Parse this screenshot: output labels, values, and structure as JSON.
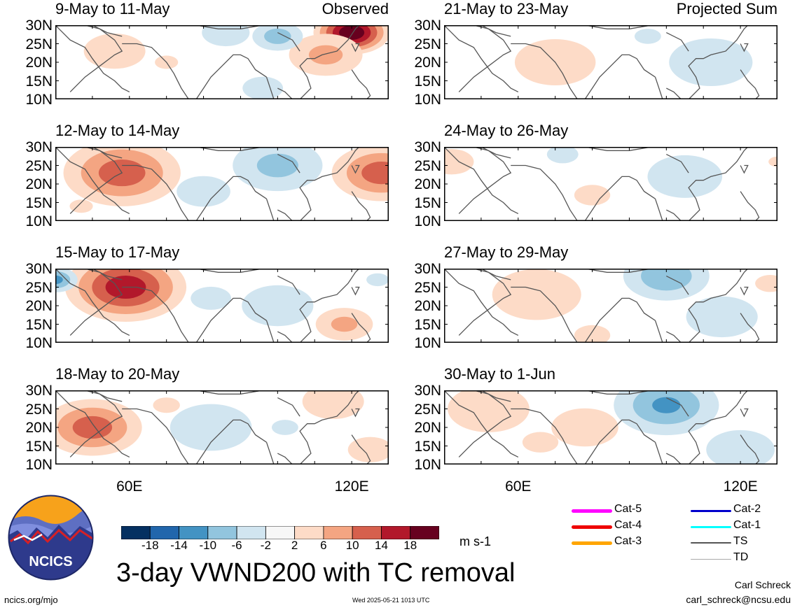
{
  "title": "3-day VWND200 with TC removal",
  "units": "m s-1",
  "footer": {
    "url": "ncics.org/mjo",
    "timestamp": "Wed 2025-05-21 1013 UTC",
    "author": "Carl Schreck",
    "email": "carl_schreck@ncsu.edu"
  },
  "logo": {
    "text": "NCICS",
    "colors": [
      "#f7a21b",
      "#2e3a8c",
      "#ffffff",
      "#d62026"
    ]
  },
  "lat_labels": [
    "30N",
    "25N",
    "20N",
    "15N",
    "10N"
  ],
  "lon_labels": [
    "60E",
    "120E"
  ],
  "columns": [
    {
      "tag": "Observed",
      "panels": [
        {
          "date": "9-May to 11-May"
        },
        {
          "date": "12-May to 14-May"
        },
        {
          "date": "15-May to 17-May"
        },
        {
          "date": "18-May to 20-May"
        }
      ]
    },
    {
      "tag": "Projected Sum",
      "panels": [
        {
          "date": "21-May to 23-May"
        },
        {
          "date": "24-May to 26-May"
        },
        {
          "date": "27-May to 29-May"
        },
        {
          "date": "30-May to 1-Jun"
        }
      ]
    }
  ],
  "colorbar": {
    "ticks": [
      "-18",
      "-14",
      "-10",
      "-6",
      "-2",
      "2",
      "6",
      "10",
      "14",
      "18"
    ],
    "colors": [
      "#053061",
      "#2166ac",
      "#4393c3",
      "#92c5de",
      "#d1e5f0",
      "#f7f7f7",
      "#fddbc7",
      "#f4a582",
      "#d6604d",
      "#b2182b",
      "#67001f"
    ]
  },
  "legend": [
    {
      "label": "Cat-5",
      "color": "#ff00ff"
    },
    {
      "label": "Cat-4",
      "color": "#ee0000"
    },
    {
      "label": "Cat-3",
      "color": "#ffa500"
    },
    {
      "label": "Cat-2",
      "color": "#0000cc"
    },
    {
      "label": "Cat-1",
      "color": "#00ffff"
    },
    {
      "label": "TS",
      "color": "#555555"
    },
    {
      "label": "TD",
      "color": "#aaaaaa"
    }
  ],
  "chart_data": {
    "type": "heatmap",
    "title": "3-day VWND200 with TC removal",
    "units": "m s-1",
    "lon_range": [
      40,
      130
    ],
    "lat_range": [
      10,
      30
    ],
    "levels": [
      -18,
      -14,
      -10,
      -6,
      -2,
      2,
      6,
      10,
      14,
      18
    ],
    "panels": [
      {
        "date": "9-May to 11-May",
        "features": [
          {
            "lon": 120,
            "lat": 28,
            "value": 22,
            "r": 8
          },
          {
            "lon": 113,
            "lat": 22,
            "value": 8,
            "r": 9
          },
          {
            "lon": 100,
            "lat": 27,
            "value": -9,
            "r": 6
          },
          {
            "lon": 56,
            "lat": 23,
            "value": 5,
            "r": 9
          },
          {
            "lon": 86,
            "lat": 28,
            "value": -4,
            "r": 8
          },
          {
            "lon": 96,
            "lat": 13,
            "value": -3,
            "r": 9
          },
          {
            "lon": 70,
            "lat": 20,
            "value": 2.5,
            "r": 7
          }
        ]
      },
      {
        "date": "12-May to 14-May",
        "features": [
          {
            "lon": 58,
            "lat": 23,
            "value": 13,
            "r": 13
          },
          {
            "lon": 128,
            "lat": 23,
            "value": 13,
            "r": 11
          },
          {
            "lon": 100,
            "lat": 25,
            "value": -8,
            "r": 11
          },
          {
            "lon": 80,
            "lat": 18,
            "value": -4,
            "r": 9
          },
          {
            "lon": 47,
            "lat": 14,
            "value": 2.5,
            "r": 7
          }
        ]
      },
      {
        "date": "15-May to 17-May",
        "features": [
          {
            "lon": 59,
            "lat": 25,
            "value": 17,
            "r": 13
          },
          {
            "lon": 40,
            "lat": 27,
            "value": -12,
            "r": 5
          },
          {
            "lon": 118,
            "lat": 15,
            "value": 8,
            "r": 7
          },
          {
            "lon": 100,
            "lat": 20,
            "value": -4,
            "r": 12
          },
          {
            "lon": 82,
            "lat": 22,
            "value": -3,
            "r": 9
          },
          {
            "lon": 127,
            "lat": 27,
            "value": -3,
            "r": 5
          }
        ]
      },
      {
        "date": "18-May to 20-May",
        "features": [
          {
            "lon": 50,
            "lat": 20,
            "value": 13,
            "r": 11
          },
          {
            "lon": 115,
            "lat": 27,
            "value": 5,
            "r": 9
          },
          {
            "lon": 82,
            "lat": 20,
            "value": -6,
            "r": 11
          },
          {
            "lon": 125,
            "lat": 14,
            "value": 6,
            "r": 6
          },
          {
            "lon": 102,
            "lat": 20,
            "value": -2.5,
            "r": 8
          },
          {
            "lon": 70,
            "lat": 26,
            "value": 3,
            "r": 6
          }
        ]
      },
      {
        "date": "21-May to 23-May",
        "features": [
          {
            "lon": 70,
            "lat": 20,
            "value": 3,
            "r": 18
          },
          {
            "lon": 112,
            "lat": 20,
            "value": -4,
            "r": 14
          },
          {
            "lon": 95,
            "lat": 27,
            "value": -2.5,
            "r": 8
          }
        ]
      },
      {
        "date": "24-May to 26-May",
        "features": [
          {
            "lon": 42,
            "lat": 26,
            "value": 6,
            "r": 6
          },
          {
            "lon": 80,
            "lat": 17,
            "value": 3,
            "r": 8
          },
          {
            "lon": 105,
            "lat": 22,
            "value": -3.5,
            "r": 14
          },
          {
            "lon": 72,
            "lat": 28,
            "value": -3,
            "r": 7
          },
          {
            "lon": 130,
            "lat": 26,
            "value": 3,
            "r": 4
          }
        ]
      },
      {
        "date": "27-May to 29-May",
        "features": [
          {
            "lon": 65,
            "lat": 23,
            "value": 5,
            "r": 13
          },
          {
            "lon": 100,
            "lat": 28,
            "value": -10,
            "r": 10
          },
          {
            "lon": 115,
            "lat": 17,
            "value": -4,
            "r": 12
          },
          {
            "lon": 80,
            "lat": 12,
            "value": 3,
            "r": 8
          },
          {
            "lon": 128,
            "lat": 26,
            "value": 4,
            "r": 5
          }
        ]
      },
      {
        "date": "30-May to 1-Jun",
        "features": [
          {
            "lon": 100,
            "lat": 26,
            "value": -11,
            "r": 12
          },
          {
            "lon": 52,
            "lat": 25,
            "value": 6,
            "r": 11
          },
          {
            "lon": 78,
            "lat": 20,
            "value": 6,
            "r": 9
          },
          {
            "lon": 120,
            "lat": 14,
            "value": -5,
            "r": 10
          },
          {
            "lon": 66,
            "lat": 16,
            "value": 3,
            "r": 8
          }
        ]
      }
    ]
  }
}
